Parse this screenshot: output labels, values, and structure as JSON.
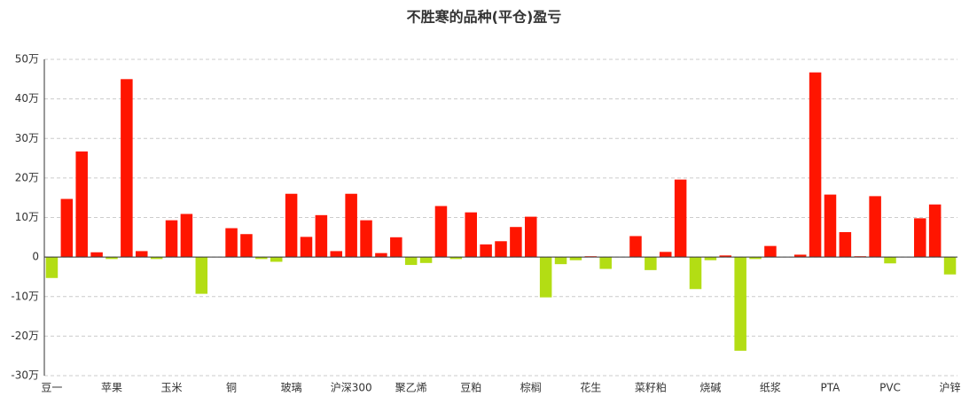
{
  "chart_data": {
    "type": "bar",
    "title": "不胜寒的品种(平仓)盈亏",
    "categories": [
      "豆一",
      null,
      null,
      null,
      "苹果",
      null,
      null,
      null,
      "玉米",
      null,
      null,
      null,
      "铜",
      null,
      null,
      null,
      "玻璃",
      null,
      null,
      null,
      "沪深300",
      null,
      null,
      null,
      "聚乙烯",
      null,
      null,
      null,
      "豆粕",
      null,
      null,
      null,
      "棕榈",
      null,
      null,
      null,
      "花生",
      null,
      null,
      null,
      "菜籽粕",
      null,
      null,
      null,
      "烧碱",
      null,
      null,
      null,
      "纸浆",
      null,
      null,
      null,
      "PTA",
      null,
      null,
      null,
      "PVC",
      null,
      null,
      null,
      "沪锌"
    ],
    "values": [
      -5.3,
      14.7,
      26.7,
      1.2,
      -0.5,
      45,
      1.5,
      -0.5,
      9.3,
      10.9,
      -9.3,
      0,
      7.3,
      5.8,
      -0.5,
      -1.2,
      16,
      5.1,
      10.6,
      1.5,
      16,
      9.3,
      1,
      5,
      -2,
      -1.5,
      12.9,
      -0.5,
      11.3,
      3.2,
      4,
      7.6,
      10.2,
      -10.2,
      -1.8,
      -0.8,
      0.2,
      -3,
      0,
      5.3,
      -3.3,
      1.3,
      19.6,
      -8.1,
      -0.8,
      0.4,
      -23.7,
      -0.5,
      2.8,
      0,
      0.6,
      46.7,
      15.8,
      6.3,
      0.2,
      15.4,
      -1.6,
      0,
      9.8,
      13.3,
      -4.4
    ],
    "positive_color": "#ff1500",
    "negative_color": "#b3dd14",
    "ylim": [
      -30,
      50
    ],
    "yticks": [
      {
        "value": -30,
        "label": "-30万"
      },
      {
        "value": -20,
        "label": "-20万"
      },
      {
        "value": -10,
        "label": "-10万"
      },
      0,
      {
        "value": 10,
        "label": "10万"
      },
      {
        "value": 20,
        "label": "20万"
      },
      {
        "value": 30,
        "label": "30万"
      },
      {
        "value": 40,
        "label": "40万"
      },
      {
        "value": 50,
        "label": "50万"
      }
    ],
    "grid": true
  }
}
